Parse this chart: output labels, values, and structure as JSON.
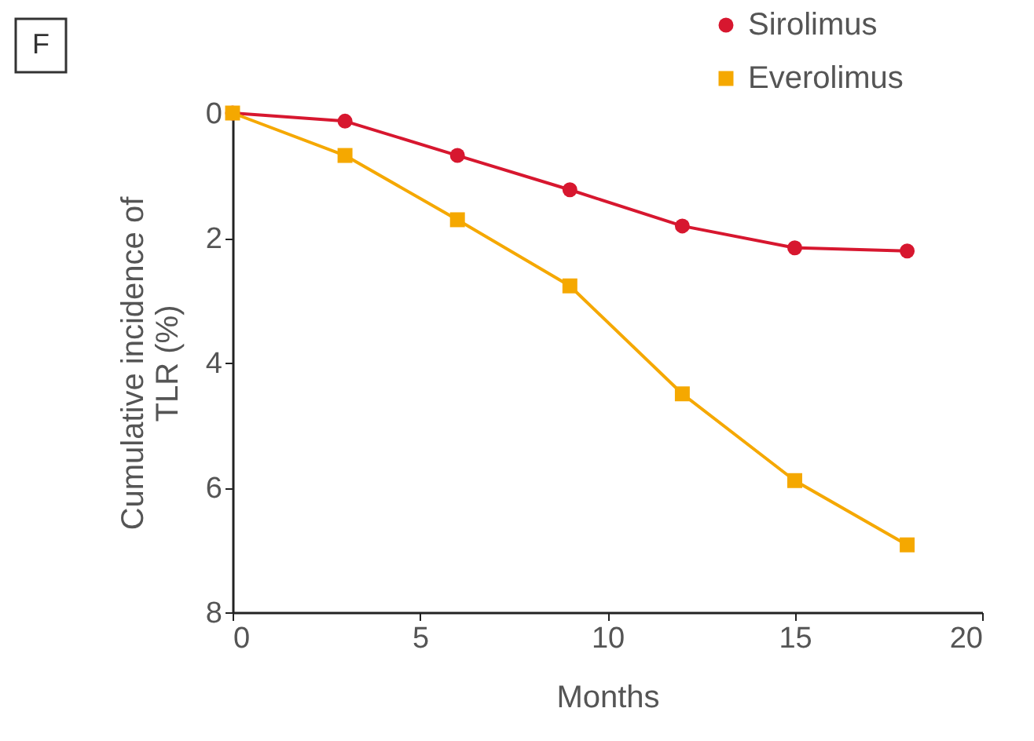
{
  "chart_data": {
    "type": "line",
    "xlabel": "Months",
    "ylabel": "Cumulative incidence of TLR (%)",
    "x": [
      0,
      3,
      6,
      9,
      12,
      15,
      18
    ],
    "series": [
      {
        "name": "Sirolimus",
        "color": "#d7172f",
        "marker": "circle",
        "values": [
          0,
          0.13,
          0.68,
          1.23,
          1.81,
          2.16,
          2.21
        ]
      },
      {
        "name": "Everolimus",
        "color": "#f5a800",
        "marker": "square",
        "values": [
          0,
          0.68,
          1.71,
          2.77,
          4.5,
          5.89,
          6.92
        ]
      }
    ],
    "xlim": [
      0,
      20
    ],
    "xticks": [
      0,
      5,
      10,
      15,
      20
    ],
    "ylim": [
      8,
      0
    ],
    "yticks": [
      0,
      2,
      4,
      6,
      8
    ],
    "grid": false,
    "legend": "top right",
    "line_style": "solid",
    "annotations": [
      "F"
    ]
  }
}
